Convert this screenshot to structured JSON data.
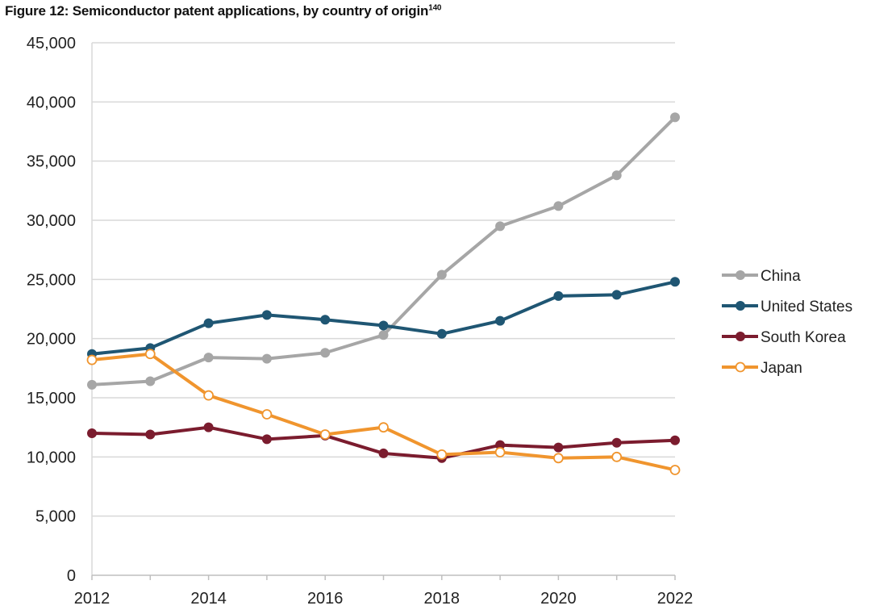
{
  "chart_data": {
    "type": "line",
    "title": "Figure 12: Semiconductor patent applications, by country of origin",
    "title_superscript": "140",
    "xlabel": "",
    "ylabel": "",
    "x": [
      2012,
      2013,
      2014,
      2015,
      2016,
      2017,
      2018,
      2019,
      2020,
      2021,
      2022
    ],
    "xticks": [
      "2012",
      "2014",
      "2016",
      "2018",
      "2020",
      "2022"
    ],
    "yticks": [
      "0",
      "5,000",
      "10,000",
      "15,000",
      "20,000",
      "25,000",
      "30,000",
      "35,000",
      "40,000",
      "45,000"
    ],
    "ylim": [
      0,
      45000
    ],
    "grid": "horizontal",
    "legend_position": "right",
    "series": [
      {
        "name": "China",
        "color": "#a6a6a6",
        "marker": "filled",
        "values": [
          16100,
          16400,
          18400,
          18300,
          18800,
          20300,
          25400,
          29500,
          31200,
          33800,
          38700
        ]
      },
      {
        "name": "United States",
        "color": "#1f5673",
        "marker": "filled",
        "values": [
          18700,
          19200,
          21300,
          22000,
          21600,
          21100,
          20400,
          21500,
          23600,
          23700,
          24800
        ]
      },
      {
        "name": "South Korea",
        "color": "#7b1c2e",
        "marker": "filled",
        "values": [
          12000,
          11900,
          12500,
          11500,
          11800,
          10300,
          9900,
          11000,
          10800,
          11200,
          11400
        ]
      },
      {
        "name": "Japan",
        "color": "#f0952e",
        "marker": "hollow",
        "values": [
          18200,
          18700,
          15200,
          13600,
          11900,
          12500,
          10200,
          10400,
          9900,
          10000,
          8900
        ]
      }
    ]
  }
}
